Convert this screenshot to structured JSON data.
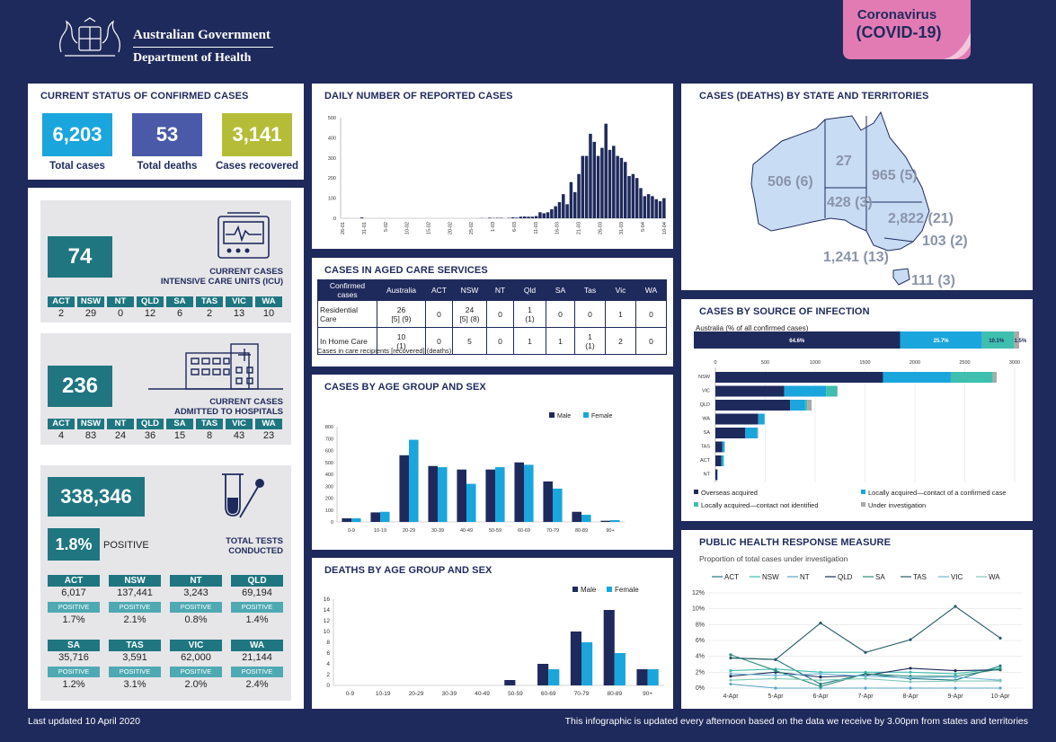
{
  "header": {
    "gov_line1": "Australian Government",
    "gov_line2": "Department of Health",
    "badge_line1": "Coronavirus",
    "badge_line2": "(COVID-19)"
  },
  "status": {
    "title": "CURRENT STATUS OF CONFIRMED CASES",
    "total_cases": "6,203",
    "total_cases_label": "Total cases",
    "total_deaths": "53",
    "total_deaths_label": "Total deaths",
    "recovered": "3,141",
    "recovered_label": "Cases recovered",
    "colors": {
      "cases": "#1aa6dc",
      "deaths": "#4a5aa8",
      "recovered": "#b5bd38"
    }
  },
  "icu": {
    "value": "74",
    "caption1": "CURRENT CASES",
    "caption2": "INTENSIVE CARE UNITS (ICU)",
    "states": [
      "ACT",
      "NSW",
      "NT",
      "QLD",
      "SA",
      "TAS",
      "VIC",
      "WA"
    ],
    "values": [
      "2",
      "29",
      "0",
      "12",
      "6",
      "2",
      "13",
      "10"
    ]
  },
  "hosp": {
    "value": "236",
    "caption1": "CURRENT CASES",
    "caption2": "ADMITTED TO HOSPITALS",
    "states": [
      "ACT",
      "NSW",
      "NT",
      "QLD",
      "SA",
      "TAS",
      "VIC",
      "WA"
    ],
    "values": [
      "4",
      "83",
      "24",
      "36",
      "15",
      "8",
      "43",
      "23"
    ]
  },
  "tests": {
    "value": "338,346",
    "pct": "1.8%",
    "positive": "POSITIVE",
    "caption1": "TOTAL TESTS",
    "caption2": "CONDUCTED",
    "positive_label": "POSITIVE",
    "rows": [
      [
        {
          "state": "ACT",
          "tests": "6,017",
          "pct": "1.7%"
        },
        {
          "state": "NSW",
          "tests": "137,441",
          "pct": "2.1%"
        },
        {
          "state": "NT",
          "tests": "3,243",
          "pct": "0.8%"
        },
        {
          "state": "QLD",
          "tests": "69,194",
          "pct": "1.4%"
        }
      ],
      [
        {
          "state": "SA",
          "tests": "35,716",
          "pct": "1.2%"
        },
        {
          "state": "TAS",
          "tests": "3,591",
          "pct": "3.1%"
        },
        {
          "state": "VIC",
          "tests": "62,000",
          "pct": "2.0%"
        },
        {
          "state": "WA",
          "tests": "21,144",
          "pct": "2.4%"
        }
      ]
    ]
  },
  "daily": {
    "title": "DAILY NUMBER OF REPORTED CASES"
  },
  "aged": {
    "title": "CASES IN AGED CARE SERVICES",
    "headers": [
      "Confirmed cases",
      "Australia",
      "ACT",
      "NSW",
      "NT",
      "Qld",
      "SA",
      "Tas",
      "Vic",
      "WA"
    ],
    "rows": [
      {
        "label": "Residential Care",
        "australia": "26",
        "australia_sub": "[5] (9)",
        "act": "0",
        "nsw": "24",
        "nsw_sub": "[5] (8)",
        "nt": "0",
        "qld": "1",
        "qld_sub": "(1)",
        "sa": "0",
        "tas": "0",
        "vic": "1",
        "wa": "0"
      },
      {
        "label": "In Home Care",
        "australia": "10",
        "australia_sub": "(1)",
        "act": "0",
        "nsw": "5",
        "nsw_sub": "",
        "nt": "0",
        "qld": "1",
        "qld_sub": "",
        "sa": "1",
        "tas": "1",
        "tas_sub": "(1)",
        "vic": "2",
        "wa": "0"
      }
    ],
    "note": "Cases in care recipients [recovered] (deaths)"
  },
  "map": {
    "title": "CASES (DEATHS) BY STATE AND TERRITORIES",
    "wa": "506 (6)",
    "nt": "27",
    "sa": "428 (3)",
    "qld": "965 (5)",
    "nsw": "2,822 (21)",
    "act": "103 (2)",
    "vic": "1,241 (13)",
    "tas": "111 (3)"
  },
  "source": {
    "title": "CASES BY SOURCE OF INFECTION",
    "subtitle": "Australia (% of all confirmed cases)",
    "stack_labels": [
      "64.6%",
      "25.7%",
      "10.1%",
      "1.5%"
    ],
    "legend": [
      "Overseas acquired",
      "Locally acquired—contact of a confirmed case",
      "Locally acquired—contact not identified",
      "Under investigation"
    ]
  },
  "response": {
    "title": "PUBLIC HEALTH RESPONSE MEASURE",
    "subtitle": "Proportion of total cases under investigation"
  },
  "age_sex": {
    "title": "CASES BY AGE GROUP AND SEX"
  },
  "deaths_age": {
    "title": "DEATHS BY AGE GROUP AND SEX"
  },
  "footer": {
    "updated": "Last updated 10 April 2020",
    "note": "This infographic is updated every afternoon based on the data we receive by 3.00pm from states and territories"
  },
  "chart_data": [
    {
      "id": "daily",
      "type": "bar",
      "title": "DAILY NUMBER OF REPORTED CASES",
      "ylim": [
        0,
        500
      ],
      "yticks": [
        0,
        100,
        200,
        300,
        400,
        500
      ],
      "xticklabels": [
        "26-01",
        "31-01",
        "5-02",
        "10-02",
        "15-02",
        "20-02",
        "25-02",
        "1-03",
        "6-03",
        "11-03",
        "16-03",
        "21-03",
        "26-03",
        "31-03",
        "5-04",
        "10-04"
      ],
      "values": [
        0,
        0,
        0,
        0,
        0,
        4,
        0,
        0,
        0,
        0,
        0,
        0,
        0,
        0,
        0,
        0,
        0,
        0,
        0,
        0,
        0,
        0,
        0,
        0,
        0,
        0,
        0,
        0,
        0,
        0,
        0,
        0,
        0,
        0,
        0,
        0,
        1,
        0,
        3,
        1,
        2,
        2,
        0,
        2,
        5,
        3,
        8,
        9,
        8,
        8,
        11,
        30,
        25,
        30,
        45,
        60,
        80,
        120,
        70,
        180,
        130,
        220,
        310,
        310,
        420,
        380,
        310,
        350,
        470,
        340,
        360,
        310,
        300,
        280,
        210,
        220,
        200,
        150,
        110,
        120,
        110,
        95,
        85,
        100
      ],
      "color": "#1f2a5c"
    },
    {
      "id": "age_sex",
      "type": "bar",
      "title": "CASES BY AGE GROUP AND SEX",
      "ylim": [
        0,
        800
      ],
      "yticks": [
        0,
        100,
        200,
        300,
        400,
        500,
        600,
        700,
        800
      ],
      "categories": [
        "0-9",
        "10-19",
        "20-29",
        "30-39",
        "40-49",
        "50-59",
        "60-69",
        "70-79",
        "80-89",
        "90+"
      ],
      "series": [
        {
          "name": "Male",
          "color": "#1f2a5c",
          "values": [
            30,
            80,
            560,
            470,
            440,
            440,
            500,
            340,
            85,
            10
          ]
        },
        {
          "name": "Female",
          "color": "#1aa6dc",
          "values": [
            30,
            85,
            690,
            460,
            320,
            460,
            480,
            280,
            60,
            15
          ]
        }
      ]
    },
    {
      "id": "deaths_age",
      "type": "bar",
      "title": "DEATHS BY AGE GROUP AND SEX",
      "ylim": [
        0,
        16
      ],
      "yticks": [
        0,
        2,
        4,
        6,
        8,
        10,
        12,
        14,
        16
      ],
      "categories": [
        "0-9",
        "10-19",
        "20-29",
        "30-39",
        "40-49",
        "50-59",
        "60-69",
        "70-79",
        "80-89",
        "90+"
      ],
      "series": [
        {
          "name": "Male",
          "color": "#1f2a5c",
          "values": [
            0,
            0,
            0,
            0,
            0,
            1,
            4,
            10,
            14,
            3
          ]
        },
        {
          "name": "Female",
          "color": "#1aa6dc",
          "values": [
            0,
            0,
            0,
            0,
            0,
            0,
            3,
            8,
            6,
            3
          ]
        }
      ]
    },
    {
      "id": "source_stack",
      "type": "bar",
      "stacked": true,
      "values": [
        64.6,
        25.7,
        10.1,
        1.5
      ],
      "labels": [
        "64.6%",
        "25.7%",
        "10.1%",
        "1.5%"
      ],
      "colors": [
        "#1f2a5c",
        "#1aa6dc",
        "#3fbfae",
        "#aaaaaa"
      ]
    },
    {
      "id": "source_states",
      "type": "bar",
      "orientation": "horizontal",
      "xlim": [
        0,
        3000
      ],
      "xticks": [
        0,
        500,
        1000,
        1500,
        2000,
        2500,
        3000
      ],
      "categories": [
        "NSW",
        "VIC",
        "QLD",
        "WA",
        "SA",
        "TAS",
        "ACT",
        "NT"
      ],
      "series": [
        {
          "name": "Overseas acquired",
          "color": "#1f2a5c",
          "values": [
            1680,
            690,
            750,
            430,
            300,
            70,
            60,
            20
          ]
        },
        {
          "name": "Locally acquired—contact of a confirmed case",
          "color": "#1aa6dc",
          "values": [
            680,
            420,
            150,
            60,
            120,
            20,
            20,
            3
          ]
        },
        {
          "name": "Locally acquired—contact not identified",
          "color": "#3fbfae",
          "values": [
            420,
            110,
            20,
            5,
            5,
            0,
            5,
            0
          ]
        },
        {
          "name": "Under investigation",
          "color": "#aaaaaa",
          "values": [
            40,
            5,
            45,
            0,
            5,
            5,
            0,
            0
          ]
        }
      ]
    },
    {
      "id": "response",
      "type": "line",
      "ylim": [
        0,
        12
      ],
      "yticks": [
        "0%",
        "2%",
        "4%",
        "6%",
        "8%",
        "10%",
        "12%"
      ],
      "categories": [
        "4-Apr",
        "5-Apr",
        "6-Apr",
        "7-Apr",
        "8-Apr",
        "9-Apr",
        "10-Apr"
      ],
      "series": [
        {
          "name": "ACT",
          "color": "#1f7681",
          "values": [
            3.8,
            3.6,
            0.5,
            1.8,
            1.2,
            1.0,
            2.8
          ]
        },
        {
          "name": "NSW",
          "color": "#3fbfae",
          "values": [
            2.2,
            2.4,
            2.0,
            2.0,
            2.0,
            1.8,
            2.5
          ]
        },
        {
          "name": "NT",
          "color": "#5aa6c8",
          "values": [
            0.5,
            0,
            0,
            0,
            0,
            0,
            0
          ]
        },
        {
          "name": "QLD",
          "color": "#1f2a5c",
          "values": [
            1.5,
            2.0,
            1.4,
            1.6,
            2.5,
            2.2,
            2.3
          ]
        },
        {
          "name": "SA",
          "color": "#2f8a78",
          "values": [
            4.2,
            2.2,
            0.2,
            1.8,
            1.5,
            1.5,
            2.4
          ]
        },
        {
          "name": "TAS",
          "color": "#255a66",
          "values": [
            3.8,
            3.6,
            8.2,
            4.5,
            6.1,
            10.3,
            6.3
          ]
        },
        {
          "name": "VIC",
          "color": "#6bb6d8",
          "values": [
            1.8,
            1.6,
            1.8,
            1.5,
            1.3,
            1.4,
            1.0
          ]
        },
        {
          "name": "WA",
          "color": "#7fc8b9",
          "values": [
            1.0,
            1.2,
            1.0,
            1.2,
            0.8,
            0.9,
            0.9
          ]
        }
      ]
    }
  ]
}
